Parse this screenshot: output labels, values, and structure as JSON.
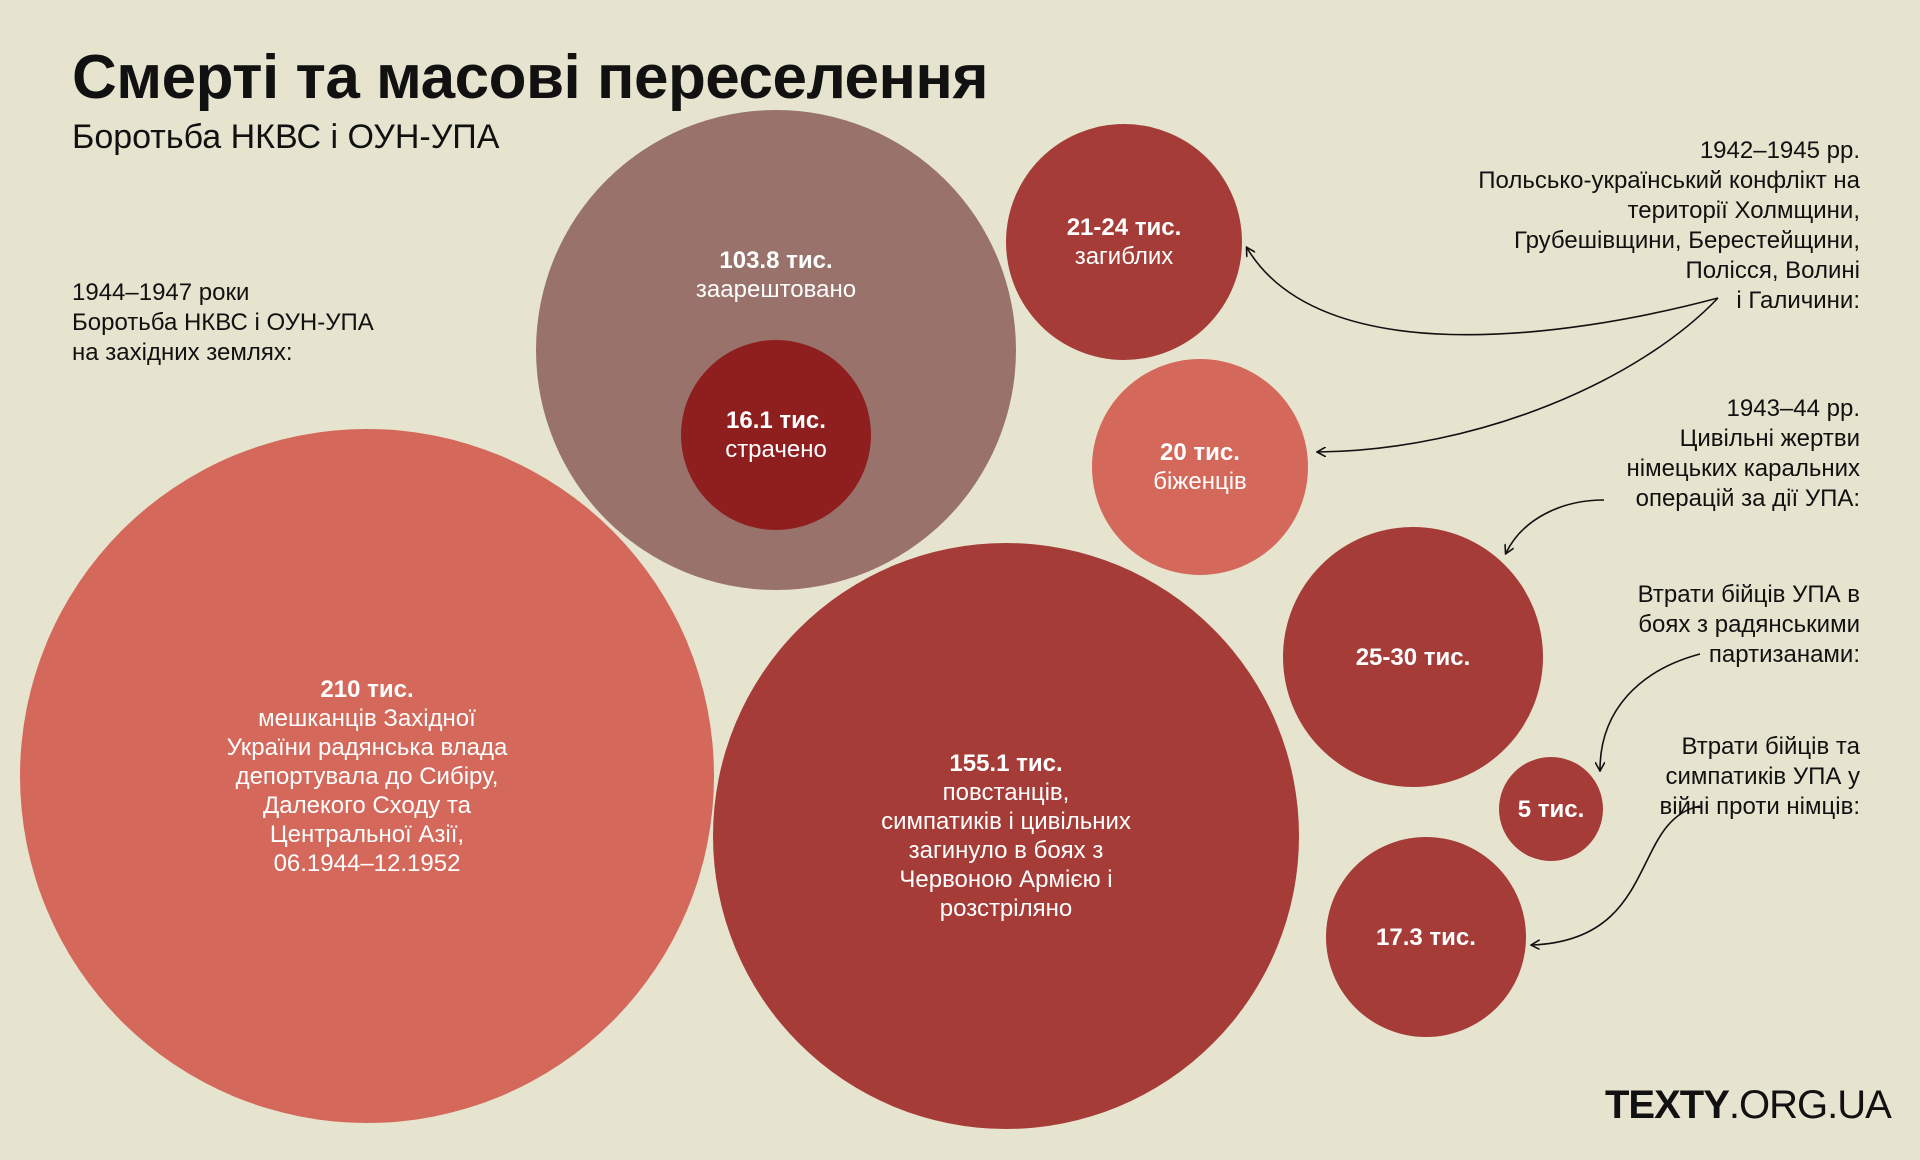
{
  "header": {
    "title": "Смерті та масові переселення",
    "subtitle": "Боротьба НКВС і ОУН-УПА"
  },
  "notes": {
    "left": [
      "1944–1947 роки",
      "Боротьба НКВС і ОУН-УПА",
      "на західних землях:"
    ],
    "conflict": [
      "1942–1945 рр.",
      "Польсько-український конфлікт на",
      "території Холмщини,",
      "Грубешівщини, Берестейщини,",
      "Полісся, Волині",
      "і Галичини:"
    ],
    "punitive": [
      "1943–44 рр.",
      "Цивільні жертви",
      "німецьких каральних",
      "операцій за дії УПА:"
    ],
    "partisans": [
      "Втрати бійців УПА в",
      "боях з радянськими",
      "партизанами:"
    ],
    "germans": [
      "Втрати бійців та",
      "симпатиків УПА у",
      "війні проти німців:"
    ]
  },
  "circles": {
    "arrested": {
      "value": "103.8 тис.",
      "desc": "заарештовано"
    },
    "executed": {
      "value": "16.1 тис.",
      "desc": "страчено"
    },
    "killed_conflict": {
      "value": "21-24 тис.",
      "desc": "загиблих"
    },
    "refugees": {
      "value": "20 тис.",
      "desc": "біженців"
    },
    "deported": {
      "value": "210 тис.",
      "desc": [
        "мешканців Західної",
        "України радянська влада",
        "депортувала до Сибіру,",
        "Далекого Сходу та",
        "Центральної Азії,",
        "06.1944–12.1952"
      ]
    },
    "insurgents": {
      "value": "155.1 тис.",
      "desc": [
        "повстанців,",
        "симпатиків і цивільних",
        "загинуло в боях з",
        "Червоною Армією і",
        "розстріляно"
      ]
    },
    "punitive_victims": {
      "value": "25-30 тис."
    },
    "partisan_losses": {
      "value": "5 тис."
    },
    "german_war_losses": {
      "value": "17.3 тис."
    }
  },
  "colors": {
    "background": "#e6e4cf",
    "brick": "#a63c38",
    "salmon": "#d4685a",
    "mauve": "#99736b",
    "dark_red": "#8f1e1e"
  },
  "logo": {
    "bold": "TEXTY",
    "rest": ".ORG.UA"
  }
}
